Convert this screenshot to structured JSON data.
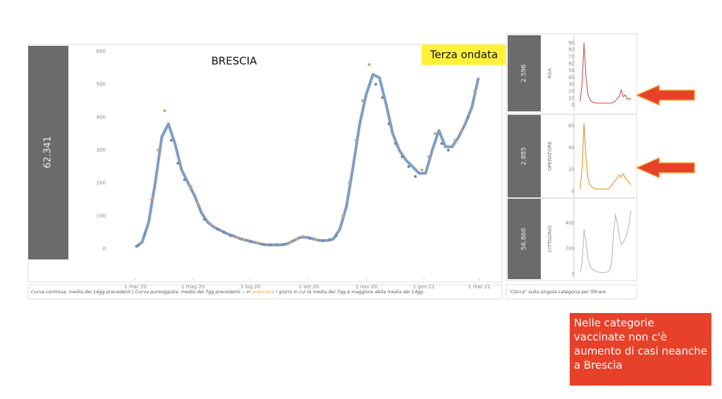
{
  "total": "62.341",
  "title": "BRESCIA",
  "annotation": "Terza ondata",
  "note": "Nelle categorie vaccinate non c'è aumento di casi neanche a Brescia",
  "caption": {
    "before": "Curva continua: media dei 14gg precedenti | Curva punteggiata: media dei 7gg precedenti -- in",
    "highlight": "arancione",
    "after": "i giorni in cui la media dei 7gg è maggiore della media dei 14gg"
  },
  "side_caption": "\"Clicca\" sulla singola categoria per filtrare",
  "chart_data": [
    {
      "type": "line",
      "xlim": [
        -24,
        389
      ],
      "ylim": [
        -90,
        615
      ],
      "xticks": [
        {
          "value": 0,
          "label": "1 mar 20"
        },
        {
          "value": 61,
          "label": "1 mag 20"
        },
        {
          "value": 122,
          "label": "1 lug 20"
        },
        {
          "value": 184,
          "label": "1 set 20"
        },
        {
          "value": 245,
          "label": "1 nov 20"
        },
        {
          "value": 306,
          "label": "1 gen 21"
        },
        {
          "value": 365,
          "label": "1 mar 21"
        }
      ],
      "yticks": [
        0,
        100,
        200,
        300,
        400,
        500,
        600
      ],
      "dot_colors": {
        "above": "#d9a06a",
        "below": "#7d8899"
      },
      "series": [
        {
          "mark": "line",
          "color": "#6f93c0",
          "x": [
            0,
            7,
            14,
            21,
            28,
            35,
            42,
            49,
            56,
            63,
            70,
            77,
            84,
            91,
            98,
            105,
            112,
            119,
            126,
            133,
            140,
            147,
            154,
            161,
            168,
            175,
            182,
            189,
            196,
            203,
            210,
            217,
            224,
            231,
            238,
            245,
            252,
            259,
            266,
            273,
            280,
            287,
            294,
            301,
            308,
            315,
            322,
            329,
            336,
            343,
            350,
            357,
            364
          ],
          "values": [
            5,
            20,
            80,
            200,
            340,
            380,
            320,
            240,
            200,
            160,
            110,
            80,
            65,
            55,
            45,
            38,
            30,
            25,
            20,
            15,
            12,
            12,
            12,
            15,
            25,
            35,
            35,
            30,
            25,
            25,
            30,
            60,
            130,
            250,
            380,
            470,
            530,
            520,
            440,
            350,
            300,
            270,
            250,
            230,
            230,
            300,
            360,
            310,
            310,
            340,
            380,
            430,
            520
          ]
        },
        {
          "mark": "dots",
          "x": [
            3,
            10,
            17,
            24,
            31,
            38,
            45,
            52,
            59,
            66,
            73,
            80,
            87,
            94,
            101,
            108,
            115,
            122,
            129,
            136,
            143,
            150,
            157,
            164,
            171,
            178,
            185,
            192,
            199,
            206,
            213,
            220,
            227,
            234,
            241,
            248,
            255,
            262,
            269,
            276,
            283,
            290,
            297,
            304,
            311,
            318,
            325,
            332,
            339,
            346,
            353,
            360
          ],
          "values": [
            10,
            45,
            150,
            300,
            420,
            330,
            260,
            210,
            190,
            140,
            90,
            75,
            60,
            50,
            40,
            35,
            28,
            22,
            18,
            13,
            12,
            12,
            13,
            20,
            30,
            38,
            32,
            28,
            25,
            27,
            40,
            100,
            200,
            330,
            450,
            560,
            500,
            460,
            380,
            320,
            280,
            250,
            220,
            240,
            280,
            350,
            320,
            300,
            330,
            360,
            400,
            480
          ]
        }
      ]
    },
    {
      "type": "line",
      "title": "RSA",
      "total": "2.596",
      "xlim": [
        -24,
        389
      ],
      "ylim": [
        -5,
        95
      ],
      "yticks": [
        0,
        10,
        20,
        30,
        40,
        50,
        60,
        70,
        80,
        90
      ],
      "series": [
        {
          "color": "#d0605e",
          "x": [
            0,
            14,
            28,
            42,
            56,
            70,
            84,
            98,
            112,
            126,
            140,
            154,
            168,
            182,
            196,
            210,
            224,
            238,
            252,
            266,
            280,
            294,
            308,
            322,
            336,
            350,
            364
          ],
          "values": [
            5,
            30,
            90,
            40,
            15,
            8,
            5,
            4,
            3,
            3,
            3,
            3,
            3,
            3,
            3,
            3,
            3,
            4,
            6,
            10,
            12,
            22,
            12,
            15,
            8,
            10,
            8
          ]
        }
      ]
    },
    {
      "type": "line",
      "title": "OPERATORE",
      "total": "2.885",
      "xlim": [
        -24,
        389
      ],
      "ylim": [
        -3,
        66
      ],
      "yticks": [
        0,
        20,
        40,
        60
      ],
      "series": [
        {
          "color": "#ea9a35",
          "x": [
            0,
            14,
            28,
            42,
            56,
            70,
            84,
            98,
            112,
            126,
            140,
            154,
            168,
            182,
            196,
            210,
            224,
            238,
            252,
            266,
            280,
            294,
            308,
            322,
            336,
            350,
            364
          ],
          "values": [
            2,
            20,
            62,
            30,
            12,
            6,
            4,
            3,
            2,
            2,
            2,
            2,
            2,
            2,
            2,
            3,
            5,
            8,
            10,
            12,
            15,
            13,
            16,
            12,
            10,
            8,
            6
          ]
        }
      ]
    },
    {
      "type": "line",
      "title": "CITTADINO",
      "total": "56.860",
      "xlim": [
        -24,
        389
      ],
      "ylim": [
        -20,
        560
      ],
      "yticks": [
        0,
        200,
        400
      ],
      "series": [
        {
          "color": "#bdbdbd",
          "x": [
            0,
            14,
            28,
            42,
            56,
            70,
            84,
            98,
            112,
            126,
            140,
            154,
            168,
            182,
            196,
            210,
            224,
            238,
            252,
            266,
            280,
            294,
            308,
            322,
            336,
            350,
            364
          ],
          "values": [
            10,
            80,
            350,
            250,
            120,
            60,
            40,
            30,
            20,
            15,
            12,
            10,
            10,
            12,
            15,
            25,
            80,
            300,
            470,
            400,
            300,
            230,
            250,
            280,
            320,
            400,
            500
          ]
        }
      ]
    }
  ]
}
